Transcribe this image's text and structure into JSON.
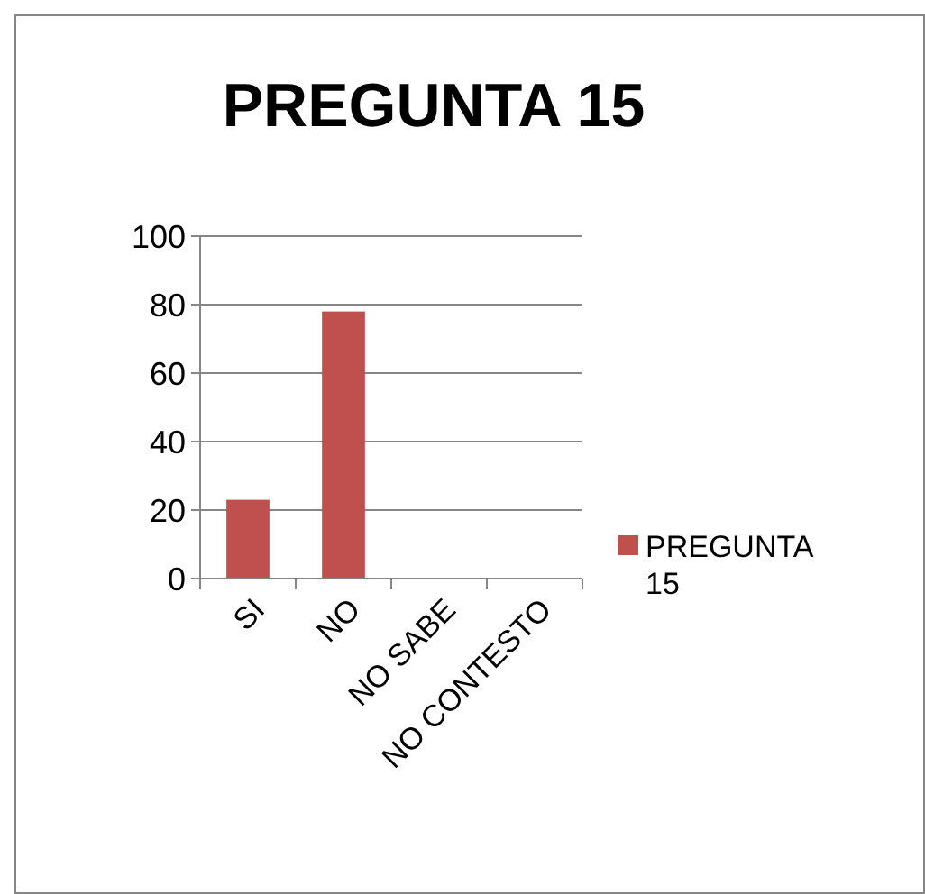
{
  "chart_data": {
    "type": "bar",
    "title": "PREGUNTA 15",
    "categories": [
      "SI",
      "NO",
      "NO SABE",
      "NO CONTESTO"
    ],
    "series": [
      {
        "name": "PREGUNTA 15",
        "color": "#c0504d",
        "values": [
          23,
          78,
          0,
          0
        ]
      }
    ],
    "ylim": [
      0,
      100
    ],
    "yticks": [
      0,
      20,
      40,
      60,
      80,
      100
    ],
    "grid": "y",
    "legend": "right"
  }
}
